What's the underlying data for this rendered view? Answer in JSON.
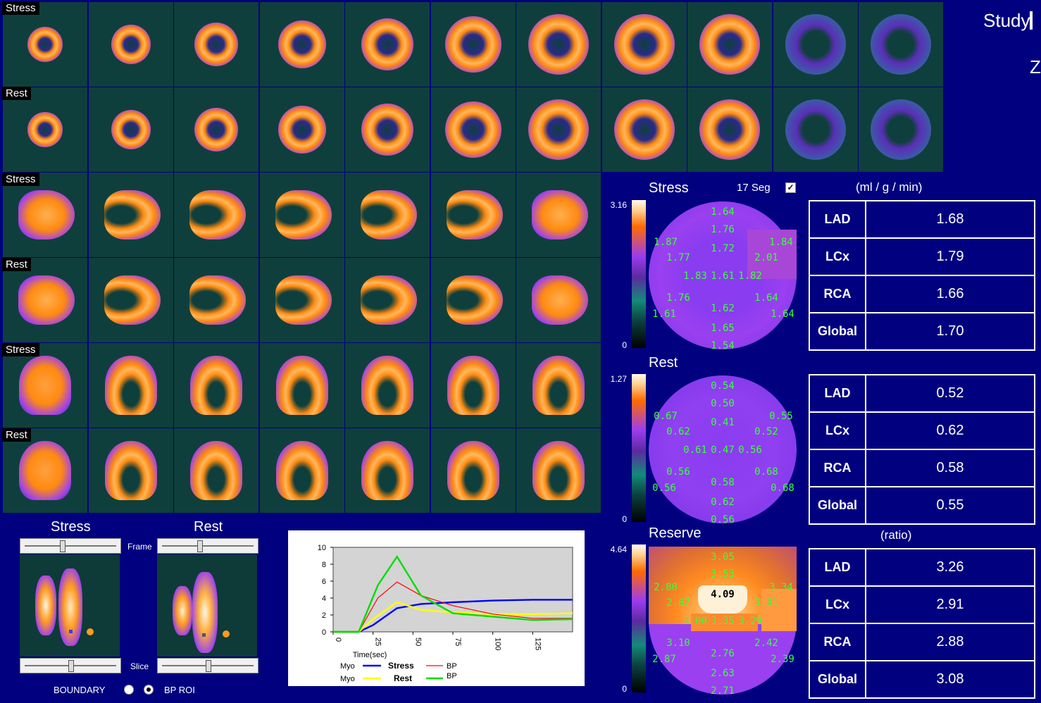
{
  "header": {
    "study_label": "Study",
    "z_label": "Z"
  },
  "row_labels": [
    "Stress",
    "Rest",
    "Stress",
    "Rest",
    "Stress",
    "Rest"
  ],
  "polar_maps": {
    "stress": {
      "title": "Stress",
      "seg_label": "17 Seg",
      "seg_checked": true,
      "scale_max": "3.16",
      "scale_min": "0",
      "segments": [
        "1.64",
        "1.76",
        "1.72",
        "1.87",
        "1.84",
        "1.77",
        "2.01",
        "1.83",
        "1.61",
        "1.82",
        "1.76",
        "1.64",
        "1.61",
        "1.64",
        "1.62",
        "1.65",
        "1.54"
      ]
    },
    "rest": {
      "title": "Rest",
      "scale_max": "1.27",
      "scale_min": "0",
      "segments": [
        "0.54",
        "0.50",
        "0.41",
        "0.67",
        "0.55",
        "0.62",
        "0.52",
        "0.61",
        "0.47",
        "0.56",
        "0.56",
        "0.68",
        "0.56",
        "0.68",
        "0.58",
        "0.62",
        "0.56"
      ]
    },
    "reserve": {
      "title": "Reserve",
      "scale_max": "4.64",
      "scale_min": "0",
      "center_value": "4.09",
      "segments": [
        "3.05",
        "3.53",
        "2.80",
        "3.34",
        "2.87",
        "3.81",
        "3.00",
        "3.35",
        "3.29",
        "3.10",
        "2.42",
        "2.87",
        "2.39",
        "2.76",
        "2.63",
        "2.71"
      ]
    }
  },
  "tables": {
    "units_label": "(ml / g / min)",
    "ratio_label": "(ratio)",
    "stress": [
      {
        "key": "LAD",
        "value": "1.68"
      },
      {
        "key": "LCx",
        "value": "1.79"
      },
      {
        "key": "RCA",
        "value": "1.66"
      },
      {
        "key": "Global",
        "value": "1.70"
      }
    ],
    "rest": [
      {
        "key": "LAD",
        "value": "0.52"
      },
      {
        "key": "LCx",
        "value": "0.62"
      },
      {
        "key": "RCA",
        "value": "0.58"
      },
      {
        "key": "Global",
        "value": "0.55"
      }
    ],
    "reserve": [
      {
        "key": "LAD",
        "value": "3.26"
      },
      {
        "key": "LCx",
        "value": "2.91"
      },
      {
        "key": "RCA",
        "value": "2.88"
      },
      {
        "key": "Global",
        "value": "3.08"
      }
    ]
  },
  "bottom_panel": {
    "stress_title": "Stress",
    "rest_title": "Rest",
    "frame_label": "Frame",
    "slice_label": "Slice",
    "boundary_label": "BOUNDARY",
    "bp_roi_label": "BP ROI",
    "selected_option": "BP ROI",
    "frame_slider_position": 0.4,
    "slice_slider_position": 0.5
  },
  "chart_data": {
    "type": "line",
    "xlabel": "Time(sec)",
    "ylabel": "",
    "xlim": [
      0,
      150
    ],
    "ylim": [
      0,
      10
    ],
    "x_ticks": [
      "0",
      "25",
      "50",
      "75",
      "100",
      "125"
    ],
    "y_ticks": [
      "0",
      "2",
      "4",
      "6",
      "8",
      "10"
    ],
    "grid": false,
    "legend": {
      "myo_label": "Myo",
      "bp_label": "BP",
      "stress_label": "Stress",
      "rest_label": "Rest",
      "placement": "bottom"
    },
    "series": [
      {
        "name": "Stress",
        "color": "#0000ff",
        "x": [
          0,
          16,
          25,
          40,
          55,
          75,
          100,
          125,
          150
        ],
        "y": [
          0,
          0,
          0.8,
          2.8,
          3.3,
          3.5,
          3.7,
          3.8,
          3.8
        ]
      },
      {
        "name": "Rest",
        "color": "#ffff00",
        "x": [
          0,
          16,
          25,
          40,
          55,
          75,
          100,
          125,
          150
        ],
        "y": [
          0,
          0,
          1.5,
          3.5,
          2.6,
          2.3,
          2.1,
          2.1,
          2.2
        ]
      },
      {
        "name": "BP",
        "color": "#ff0000",
        "x": [
          0,
          16,
          28,
          40,
          55,
          75,
          100,
          125,
          150
        ],
        "y": [
          0,
          0,
          4.0,
          5.9,
          4.3,
          3.1,
          2.1,
          1.6,
          1.6
        ]
      },
      {
        "name": "BP",
        "color": "#00dd00",
        "x": [
          0,
          16,
          28,
          40,
          55,
          75,
          100,
          125,
          150
        ],
        "y": [
          0,
          0,
          5.5,
          8.9,
          4.3,
          2.2,
          1.8,
          1.4,
          1.5
        ]
      }
    ]
  }
}
